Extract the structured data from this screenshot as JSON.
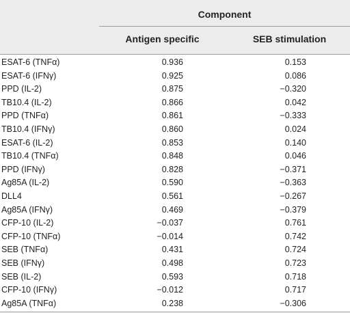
{
  "table": {
    "group_header": "Component",
    "columns": [
      "Antigen specific",
      "SEB stimulation"
    ],
    "rows": [
      {
        "label": "ESAT-6 (TNFα)",
        "a": "0.936",
        "b": "0.153"
      },
      {
        "label": "ESAT-6 (IFNγ)",
        "a": "0.925",
        "b": "0.086"
      },
      {
        "label": "PPD (IL-2)",
        "a": "0.875",
        "b": "−0.320"
      },
      {
        "label": "TB10.4 (IL-2)",
        "a": "0.866",
        "b": "0.042"
      },
      {
        "label": "PPD (TNFα)",
        "a": "0.861",
        "b": "−0.333"
      },
      {
        "label": "TB10.4 (IFNγ)",
        "a": "0.860",
        "b": "0.024"
      },
      {
        "label": "ESAT-6 (IL-2)",
        "a": "0.853",
        "b": "0.140"
      },
      {
        "label": "TB10.4 (TNFα)",
        "a": "0.848",
        "b": "0.046"
      },
      {
        "label": "PPD (IFNγ)",
        "a": "0.828",
        "b": "−0.371"
      },
      {
        "label": "Ag85A (IL-2)",
        "a": "0.590",
        "b": "−0.363"
      },
      {
        "label": "DLL4",
        "a": "0.561",
        "b": "−0.267"
      },
      {
        "label": "Ag85A (IFNγ)",
        "a": "0.469",
        "b": "−0.379"
      },
      {
        "label": "CFP-10 (IL-2)",
        "a": "−0.037",
        "b": "0.761"
      },
      {
        "label": "CFP-10 (TNFα)",
        "a": "−0.014",
        "b": "0.742"
      },
      {
        "label": "SEB (TNFα)",
        "a": "0.431",
        "b": "0.724"
      },
      {
        "label": "SEB (IFNγ)",
        "a": "0.498",
        "b": "0.723"
      },
      {
        "label": "SEB (IL-2)",
        "a": "0.593",
        "b": "0.718"
      },
      {
        "label": "CFP-10 (IFNγ)",
        "a": "−0.012",
        "b": "0.717"
      },
      {
        "label": "Ag85A (TNFα)",
        "a": "0.238",
        "b": "−0.306"
      }
    ]
  }
}
